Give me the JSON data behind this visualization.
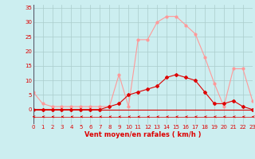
{
  "title": "",
  "xlabel": "Vent moyen/en rafales ( km/h )",
  "ylabel": "",
  "bg_color": "#cceef0",
  "grid_color": "#aacccc",
  "line_rafales_color": "#ff9999",
  "line_moyen_color": "#dd0000",
  "arrow_color": "#dd0000",
  "x": [
    0,
    1,
    2,
    3,
    4,
    5,
    6,
    7,
    8,
    9,
    10,
    11,
    12,
    13,
    14,
    15,
    16,
    17,
    18,
    19,
    20,
    21,
    22,
    23
  ],
  "y_moyen": [
    0,
    0,
    0,
    0,
    0,
    0,
    0,
    0,
    1,
    2,
    5,
    6,
    7,
    8,
    11,
    12,
    11,
    10,
    6,
    2,
    2,
    3,
    1,
    0
  ],
  "y_rafales": [
    6,
    2,
    1,
    1,
    1,
    1,
    1,
    1,
    1,
    12,
    1,
    24,
    24,
    30,
    32,
    32,
    29,
    26,
    18,
    9,
    1,
    14,
    14,
    3
  ],
  "ylim": [
    0,
    36
  ],
  "xlim": [
    0,
    23
  ],
  "yticks": [
    0,
    5,
    10,
    15,
    20,
    25,
    30,
    35
  ],
  "xticks": [
    0,
    1,
    2,
    3,
    4,
    5,
    6,
    7,
    8,
    9,
    10,
    11,
    12,
    13,
    14,
    15,
    16,
    17,
    18,
    19,
    20,
    21,
    22,
    23
  ],
  "xlabel_fontsize": 6,
  "tick_fontsize": 5,
  "figwidth": 3.2,
  "figheight": 2.0,
  "dpi": 100
}
